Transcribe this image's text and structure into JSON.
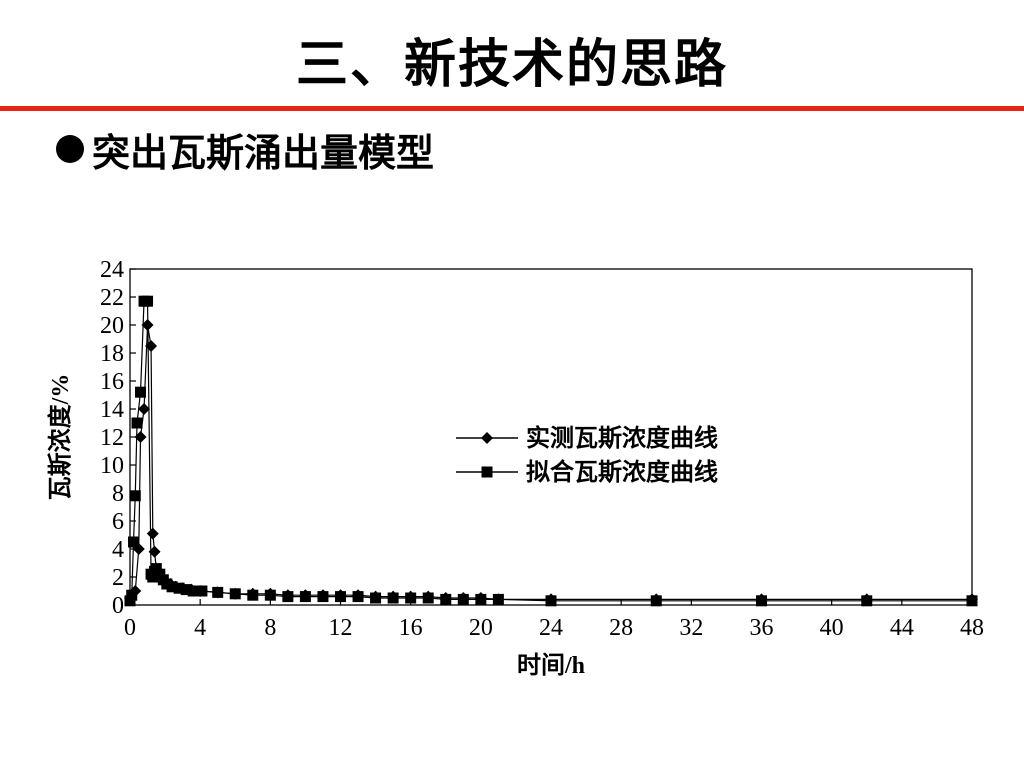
{
  "slide": {
    "title": "三、新技术的思路",
    "bullet": "突出瓦斯涌出量模型"
  },
  "colors": {
    "title_rule": "#e8231a",
    "series": "#000000"
  },
  "chart_data": {
    "type": "line",
    "title": "",
    "xlabel": "时间/h",
    "ylabel": "瓦斯浓度/%",
    "xlim": [
      0,
      48
    ],
    "ylim": [
      0,
      24
    ],
    "xticks": [
      "0",
      "4",
      "8",
      "12",
      "16",
      "20",
      "24",
      "28",
      "32",
      "36",
      "40",
      "44",
      "48"
    ],
    "yticks": [
      "0",
      "2",
      "4",
      "6",
      "8",
      "10",
      "12",
      "14",
      "16",
      "18",
      "20",
      "22",
      "24"
    ],
    "grid": false,
    "legend_position": "center-right",
    "series": [
      {
        "name": "实测瓦斯浓度曲线",
        "marker": "diamond",
        "x": [
          0,
          0.3,
          0.5,
          0.6,
          0.8,
          1.0,
          1.2,
          1.3,
          1.4,
          1.5,
          1.6,
          1.8,
          2.0,
          2.3,
          2.6,
          3.0,
          3.5,
          4.0,
          5,
          6,
          7,
          8,
          9,
          10,
          11,
          12,
          13,
          14,
          15,
          16,
          17,
          18,
          19,
          20,
          21,
          24,
          30,
          36,
          42,
          48
        ],
        "y": [
          0.5,
          1.0,
          4.0,
          12.0,
          14.0,
          20.0,
          18.5,
          5.1,
          3.8,
          2.6,
          2.3,
          2.0,
          1.7,
          1.5,
          1.3,
          1.2,
          1.1,
          1.0,
          0.9,
          0.8,
          0.8,
          0.8,
          0.7,
          0.7,
          0.7,
          0.7,
          0.7,
          0.6,
          0.6,
          0.6,
          0.6,
          0.5,
          0.5,
          0.5,
          0.4,
          0.4,
          0.4,
          0.4,
          0.4,
          0.4
        ]
      },
      {
        "name": "拟合瓦斯浓度曲线",
        "marker": "square",
        "x": [
          0,
          0.1,
          0.2,
          0.3,
          0.4,
          0.6,
          0.8,
          1.0,
          1.2,
          1.3,
          1.4,
          1.5,
          1.7,
          1.9,
          2.1,
          2.4,
          2.8,
          3.2,
          3.6,
          4.1,
          5,
          6,
          7,
          8,
          9,
          10,
          11,
          12,
          13,
          14,
          15,
          16,
          17,
          18,
          19,
          20,
          21,
          24,
          30,
          36,
          42,
          48
        ],
        "y": [
          0.3,
          0.7,
          4.5,
          7.8,
          13.0,
          15.2,
          21.7,
          21.7,
          2.2,
          2.0,
          2.4,
          2.6,
          2.2,
          1.8,
          1.5,
          1.3,
          1.2,
          1.1,
          1.0,
          1.0,
          0.9,
          0.8,
          0.7,
          0.7,
          0.6,
          0.6,
          0.6,
          0.6,
          0.6,
          0.5,
          0.5,
          0.5,
          0.5,
          0.4,
          0.4,
          0.4,
          0.4,
          0.3,
          0.3,
          0.3,
          0.3,
          0.3
        ]
      }
    ]
  }
}
